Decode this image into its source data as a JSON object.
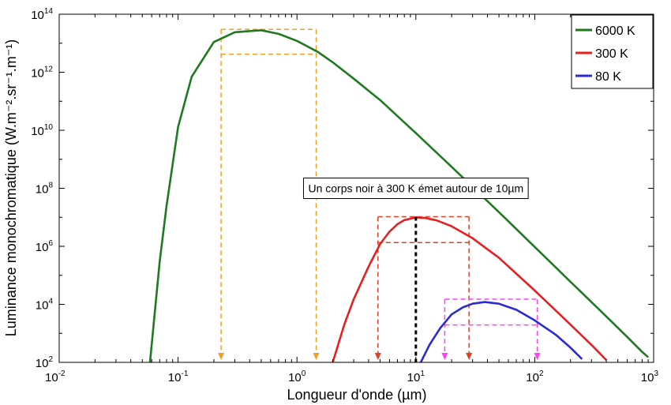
{
  "chart_data": {
    "type": "line",
    "x_scale": "log",
    "y_scale": "log",
    "xlim": [
      0.01,
      1000
    ],
    "ylim": [
      100,
      100000000000000
    ],
    "xlabel": "Longueur d'onde (µm)",
    "ylabel": "Luminance monochromatique (W.m⁻².sr⁻¹.m⁻¹)",
    "x_ticks": [
      {
        "base": "10",
        "exp": "-2",
        "value": 0.01
      },
      {
        "base": "10",
        "exp": "-1",
        "value": 0.1
      },
      {
        "base": "10",
        "exp": "0",
        "value": 1
      },
      {
        "base": "10",
        "exp": "1",
        "value": 10
      },
      {
        "base": "10",
        "exp": "2",
        "value": 100
      },
      {
        "base": "10",
        "exp": "3",
        "value": 1000
      }
    ],
    "y_ticks": [
      {
        "base": "10",
        "exp": "2",
        "value": 100
      },
      {
        "base": "10",
        "exp": "4",
        "value": 10000
      },
      {
        "base": "10",
        "exp": "6",
        "value": 1000000
      },
      {
        "base": "10",
        "exp": "8",
        "value": 100000000
      },
      {
        "base": "10",
        "exp": "10",
        "value": 10000000000
      },
      {
        "base": "10",
        "exp": "12",
        "value": 1000000000000
      },
      {
        "base": "10",
        "exp": "14",
        "value": 100000000000000
      }
    ],
    "grid": false,
    "legend_position": "top-right",
    "series": [
      {
        "name": "6000 K",
        "color": "#1f7a1f",
        "points": [
          [
            0.058,
            100
          ],
          [
            0.07,
            300000.0
          ],
          [
            0.08,
            25000000.0
          ],
          [
            0.1,
            13000000000.0
          ],
          [
            0.13,
            700000000000.0
          ],
          [
            0.2,
            11000000000000.0
          ],
          [
            0.3,
            24000000000000.0
          ],
          [
            0.5,
            28000000000000.0
          ],
          [
            0.7,
            21000000000000.0
          ],
          [
            1,
            12000000000000.0
          ],
          [
            1.5,
            5000000000000.0
          ],
          [
            2,
            2200000000000.0
          ],
          [
            3,
            600000000000.0
          ],
          [
            5,
            110000000000.0
          ],
          [
            10,
            8000000000.0
          ],
          [
            20,
            550000000.0
          ],
          [
            50,
            15000000.0
          ],
          [
            100,
            950000.0
          ],
          [
            200,
            60000.0
          ],
          [
            400,
            3800.0
          ],
          [
            600,
            750.0
          ],
          [
            800,
            230.0
          ],
          [
            900,
            150.0
          ]
        ]
      },
      {
        "name": "300 K",
        "color": "#e62020",
        "points": [
          [
            2,
            100
          ],
          [
            2.5,
            2000.0
          ],
          [
            3,
            15000.0
          ],
          [
            4,
            200000.0
          ],
          [
            5,
            1200000.0
          ],
          [
            6,
            3200000.0
          ],
          [
            7,
            5800000.0
          ],
          [
            8,
            8000000.0
          ],
          [
            10,
            9900000.0
          ],
          [
            12,
            9500000.0
          ],
          [
            15,
            7800000.0
          ],
          [
            20,
            4900000.0
          ],
          [
            30,
            1900000.0
          ],
          [
            50,
            400000.0
          ],
          [
            100,
            30000.0
          ],
          [
            200,
            2000.0
          ],
          [
            300,
            400.0
          ],
          [
            400,
            120.0
          ]
        ]
      },
      {
        "name": "80 K",
        "color": "#2a2ad6",
        "points": [
          [
            11,
            100
          ],
          [
            13,
            400.0
          ],
          [
            16,
            1500.0
          ],
          [
            20,
            4500.0
          ],
          [
            25,
            8000.0
          ],
          [
            30,
            10500.0
          ],
          [
            38,
            12000.0
          ],
          [
            50,
            10500.0
          ],
          [
            70,
            6500.0
          ],
          [
            100,
            2800.0
          ],
          [
            150,
            900.0
          ],
          [
            200,
            320.0
          ],
          [
            250,
            130.0
          ]
        ]
      }
    ],
    "annotation": {
      "text": "Un corps noir à 300 K émet autour de 10µm",
      "x": 10,
      "y": 100000000
    },
    "marker_boxes": [
      {
        "color": "#f0a020",
        "x_low": 0.23,
        "x_high": 1.45,
        "y_top": 30000000000000.0,
        "y_half": 4200000000000.0
      },
      {
        "color": "#e04020",
        "x_low": 4.8,
        "x_high": 28,
        "y_top": 10500000.0,
        "y_half": 1350000.0
      },
      {
        "color": "#ff40ff",
        "x_low": 17.5,
        "x_high": 105,
        "y_top": 15000.0,
        "y_half": 1950.0
      }
    ],
    "peak_marker": {
      "x": 10,
      "color": "#000000"
    }
  }
}
